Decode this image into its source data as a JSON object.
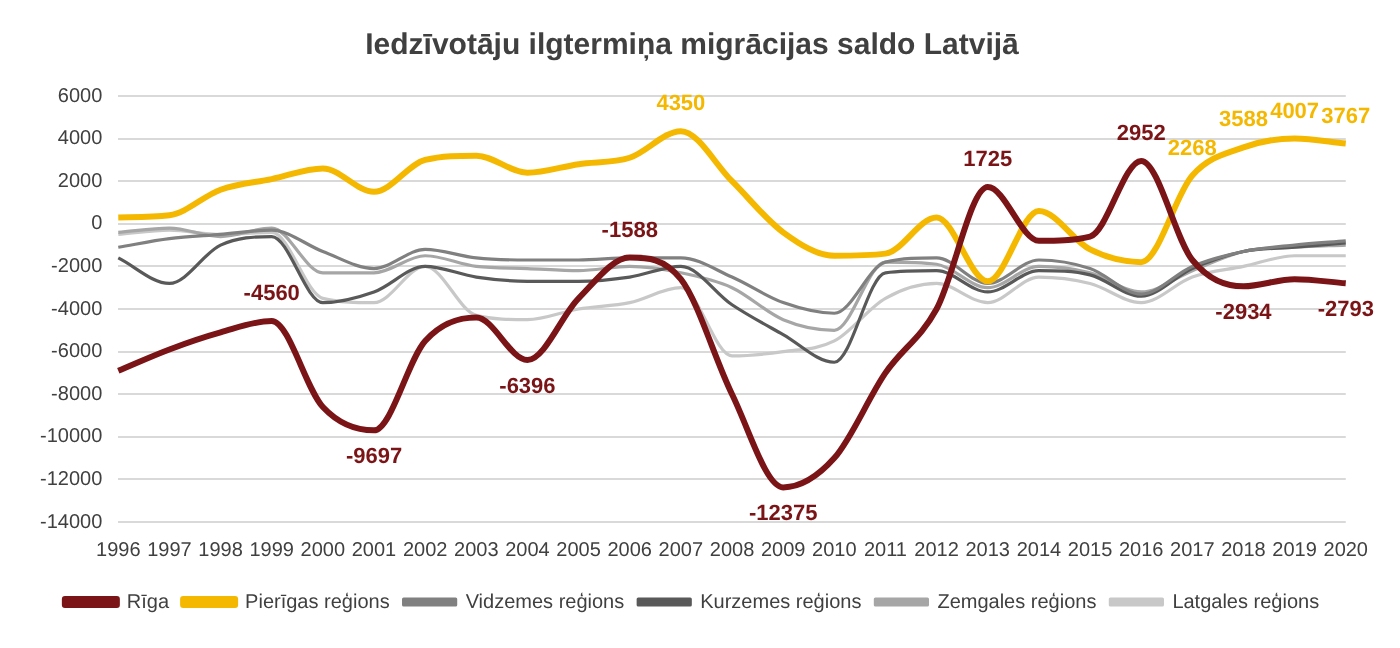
{
  "chart_data": {
    "type": "line",
    "title": "Iedzīvotāju ilgtermiņa migrācijas saldo Latvijā",
    "categories": [
      "1996",
      "1997",
      "1998",
      "1999",
      "2000",
      "2001",
      "2002",
      "2003",
      "2004",
      "2005",
      "2006",
      "2007",
      "2008",
      "2009",
      "2010",
      "2011",
      "2012",
      "2013",
      "2014",
      "2015",
      "2016",
      "2017",
      "2018",
      "2019",
      "2020"
    ],
    "series": [
      {
        "name": "Rīga",
        "color": "#7b1416",
        "values": [
          -6900,
          -5900,
          -5100,
          -4560,
          -8600,
          -9697,
          -5500,
          -4400,
          -6396,
          -3500,
          -1588,
          -2600,
          -8000,
          -12375,
          -11000,
          -7000,
          -4000,
          1725,
          -800,
          -600,
          2952,
          -1700,
          -2934,
          -2600,
          -2793
        ],
        "value_labels": [
          null,
          null,
          null,
          "-4560",
          null,
          "-9697",
          null,
          null,
          "-6396",
          null,
          "-1588",
          null,
          null,
          "-12375",
          null,
          null,
          null,
          "1725",
          null,
          null,
          "2952",
          null,
          "-2934",
          null,
          "-2793"
        ]
      },
      {
        "name": "Pierīgas reģions",
        "color": "#f5b800",
        "values": [
          300,
          400,
          1600,
          2100,
          2600,
          1500,
          3000,
          3200,
          2400,
          2800,
          3100,
          4350,
          2000,
          -400,
          -1500,
          -1400,
          300,
          -2700,
          600,
          -1200,
          -1800,
          2268,
          3588,
          4007,
          3767
        ],
        "value_labels": [
          null,
          null,
          null,
          null,
          null,
          null,
          null,
          null,
          null,
          null,
          null,
          "4350",
          null,
          null,
          null,
          null,
          null,
          null,
          null,
          null,
          null,
          "2268",
          "3588",
          "4007",
          "3767"
        ]
      },
      {
        "name": "Vidzemes reģions",
        "color": "#808080",
        "values": [
          -1100,
          -700,
          -500,
          -300,
          -1300,
          -2100,
          -1200,
          -1600,
          -1700,
          -1700,
          -1600,
          -1600,
          -2500,
          -3700,
          -4200,
          -1800,
          -1600,
          -2800,
          -1700,
          -2100,
          -3300,
          -2000,
          -1300,
          -1000,
          -800
        ]
      },
      {
        "name": "Kurzemes reģions",
        "color": "#595959",
        "values": [
          -1600,
          -2800,
          -1000,
          -600,
          -3700,
          -3200,
          -2000,
          -2500,
          -2700,
          -2700,
          -2500,
          -2000,
          -3800,
          -5200,
          -6500,
          -2300,
          -2200,
          -3200,
          -2200,
          -2400,
          -3400,
          -2100,
          -1300,
          -1100,
          -900
        ]
      },
      {
        "name": "Zemgales reģions",
        "color": "#a6a6a6",
        "values": [
          -400,
          -200,
          -600,
          -200,
          -2300,
          -2300,
          -1500,
          -2000,
          -2100,
          -2200,
          -2000,
          -2300,
          -3000,
          -4500,
          -5000,
          -1800,
          -1900,
          -3000,
          -2000,
          -2300,
          -3200,
          -2200,
          -1300,
          -1100,
          -1000
        ]
      },
      {
        "name": "Latgales reģions",
        "color": "#c8c8c8",
        "values": [
          -500,
          -300,
          -500,
          -400,
          -3500,
          -3700,
          -2000,
          -4300,
          -4500,
          -4000,
          -3700,
          -3000,
          -6200,
          -6000,
          -5500,
          -3500,
          -2800,
          -3700,
          -2500,
          -2800,
          -3700,
          -2500,
          -2000,
          -1500,
          -1500
        ]
      }
    ],
    "ylim": [
      -14000,
      6000
    ],
    "yticks": [
      -14000,
      -12000,
      -10000,
      -8000,
      -6000,
      -4000,
      -2000,
      0,
      2000,
      4000,
      6000
    ],
    "grid": "y",
    "legend": "bottom",
    "marker": "none",
    "line_style": "solid"
  }
}
